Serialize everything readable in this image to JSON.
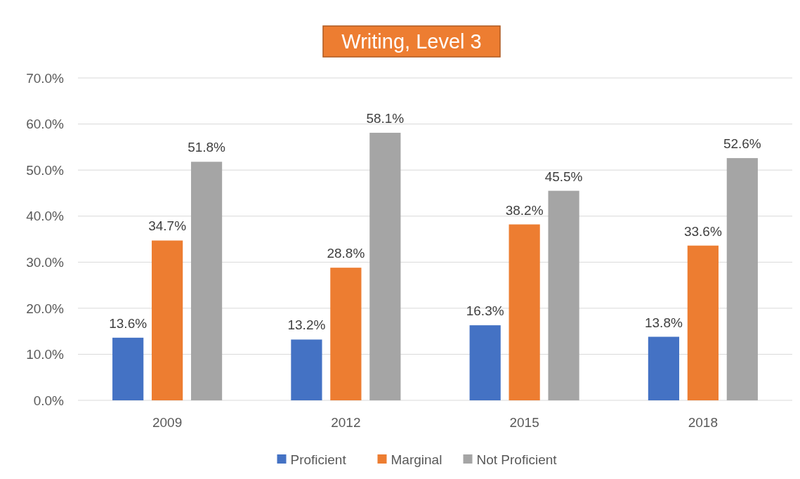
{
  "chart_data": {
    "type": "bar",
    "title": "Writing, Level 3",
    "categories": [
      "2009",
      "2012",
      "2015",
      "2018"
    ],
    "series": [
      {
        "name": "Proficient",
        "color": "#4472c4",
        "values": [
          13.6,
          13.2,
          16.3,
          13.8
        ],
        "value_labels": [
          "13.6%",
          "13.2%",
          "16.3%",
          "13.8%"
        ]
      },
      {
        "name": "Marginal",
        "color": "#ed7d31",
        "values": [
          34.7,
          28.8,
          38.2,
          33.6
        ],
        "value_labels": [
          "34.7%",
          "28.8%",
          "38.2%",
          "33.6%"
        ]
      },
      {
        "name": "Not Proficient",
        "color": "#a5a5a5",
        "values": [
          51.8,
          58.1,
          45.5,
          52.6
        ],
        "value_labels": [
          "51.8%",
          "58.1%",
          "45.5%",
          "52.6%"
        ]
      }
    ],
    "ylim": [
      0,
      70
    ],
    "yticks": [
      {
        "value": 0,
        "label": "0.0%"
      },
      {
        "value": 10,
        "label": "10.0%"
      },
      {
        "value": 20,
        "label": "20.0%"
      },
      {
        "value": 30,
        "label": "30.0%"
      },
      {
        "value": 40,
        "label": "40.0%"
      },
      {
        "value": 50,
        "label": "50.0%"
      },
      {
        "value": 60,
        "label": "60.0%"
      },
      {
        "value": 70,
        "label": "70.0%"
      }
    ],
    "grid": "y",
    "legend": "bottom"
  }
}
